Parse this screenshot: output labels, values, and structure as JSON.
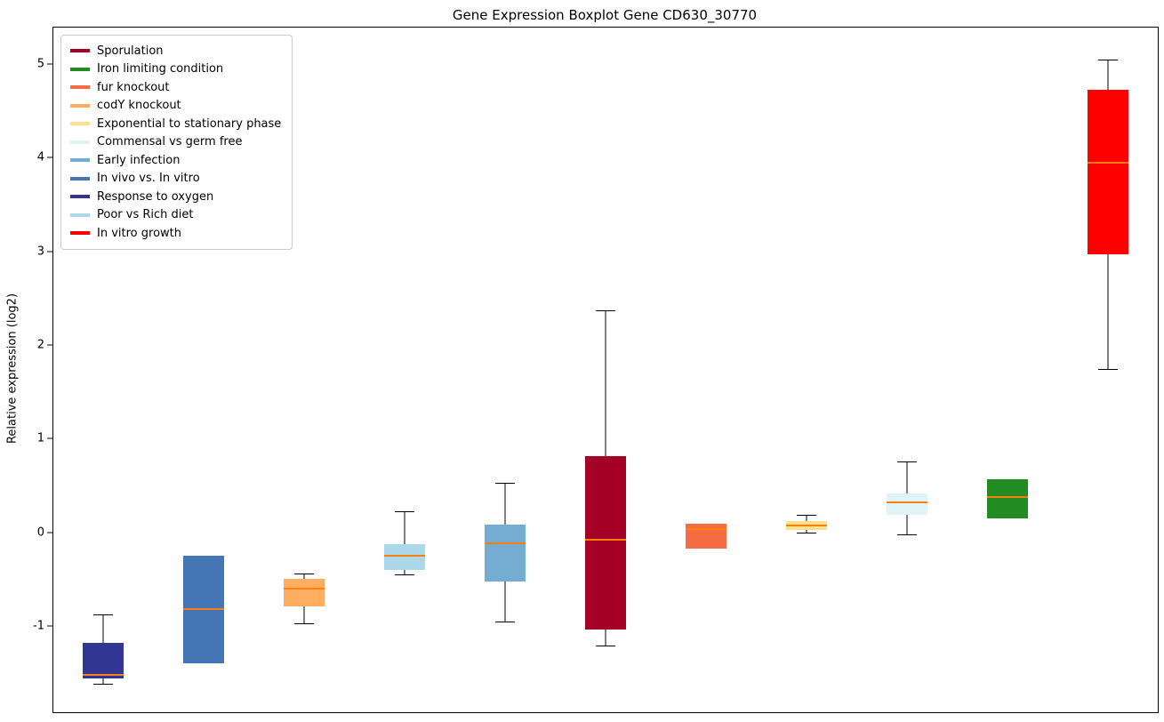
{
  "title": "Gene Expression Boxplot Gene CD630_30770",
  "chart_data": {
    "type": "boxplot",
    "title": "Gene Expression Boxplot Gene CD630_30770",
    "xlabel": "",
    "ylabel": "Relative expression (log2)",
    "ylim": [
      -1.92,
      5.39
    ],
    "yticks": [
      -1,
      0,
      1,
      2,
      3,
      4,
      5
    ],
    "grid": false,
    "legend_position": "upper left",
    "median_color": "#FF7F0E",
    "whisker_color": "#000000",
    "legend": [
      {
        "label": "Sporulation",
        "color": "#A50026"
      },
      {
        "label": "Iron limiting condition",
        "color": "#228B22"
      },
      {
        "label": "fur knockout",
        "color": "#F46D43"
      },
      {
        "label": "codY knockout",
        "color": "#FDAE61"
      },
      {
        "label": "Exponential to stationary phase",
        "color": "#FEE090"
      },
      {
        "label": "Commensal vs germ free",
        "color": "#E0F3F8"
      },
      {
        "label": "Early infection",
        "color": "#74ADD1"
      },
      {
        "label": "In vivo vs. In vitro",
        "color": "#4575B4"
      },
      {
        "label": "Response to oxygen",
        "color": "#313695"
      },
      {
        "label": "Poor vs Rich diet",
        "color": "#ABD9E9"
      },
      {
        "label": "In vitro growth",
        "color": "#FF0000"
      }
    ],
    "boxes": [
      {
        "name": "Response to oxygen",
        "color": "#313695",
        "whisker_low": -1.62,
        "q1": -1.56,
        "median": -1.52,
        "q3": -1.18,
        "whisker_high": -0.88
      },
      {
        "name": "In vivo vs. In vitro",
        "color": "#4575B4",
        "whisker_low": -1.4,
        "q1": -1.4,
        "median": -0.82,
        "q3": -0.25,
        "whisker_high": -0.25
      },
      {
        "name": "codY knockout",
        "color": "#FDAE61",
        "whisker_low": -0.97,
        "q1": -0.79,
        "median": -0.6,
        "q3": -0.5,
        "whisker_high": -0.44
      },
      {
        "name": "Poor vs Rich diet",
        "color": "#ABD9E9",
        "whisker_low": -0.45,
        "q1": -0.4,
        "median": -0.25,
        "q3": -0.13,
        "whisker_high": 0.23
      },
      {
        "name": "Early infection",
        "color": "#74ADD1",
        "whisker_low": -0.95,
        "q1": -0.52,
        "median": -0.12,
        "q3": 0.08,
        "whisker_high": 0.53
      },
      {
        "name": "Sporulation",
        "color": "#A50026",
        "whisker_low": -1.21,
        "q1": -1.04,
        "median": -0.08,
        "q3": 0.81,
        "whisker_high": 2.37
      },
      {
        "name": "fur knockout",
        "color": "#F46D43",
        "whisker_low": -0.17,
        "q1": -0.17,
        "median": 0.04,
        "q3": 0.09,
        "whisker_high": 0.09
      },
      {
        "name": "Exponential to stationary phase",
        "color": "#FEE090",
        "whisker_low": 0.0,
        "q1": 0.03,
        "median": 0.07,
        "q3": 0.12,
        "whisker_high": 0.19
      },
      {
        "name": "Commensal vs germ free",
        "color": "#E0F3F8",
        "whisker_low": -0.02,
        "q1": 0.19,
        "median": 0.32,
        "q3": 0.42,
        "whisker_high": 0.76
      },
      {
        "name": "Iron limiting condition",
        "color": "#228B22",
        "whisker_low": 0.15,
        "q1": 0.15,
        "median": 0.38,
        "q3": 0.57,
        "whisker_high": 0.57
      },
      {
        "name": "In vitro growth",
        "color": "#FF0000",
        "whisker_low": 1.74,
        "q1": 2.97,
        "median": 3.95,
        "q3": 4.73,
        "whisker_high": 5.05
      }
    ]
  }
}
